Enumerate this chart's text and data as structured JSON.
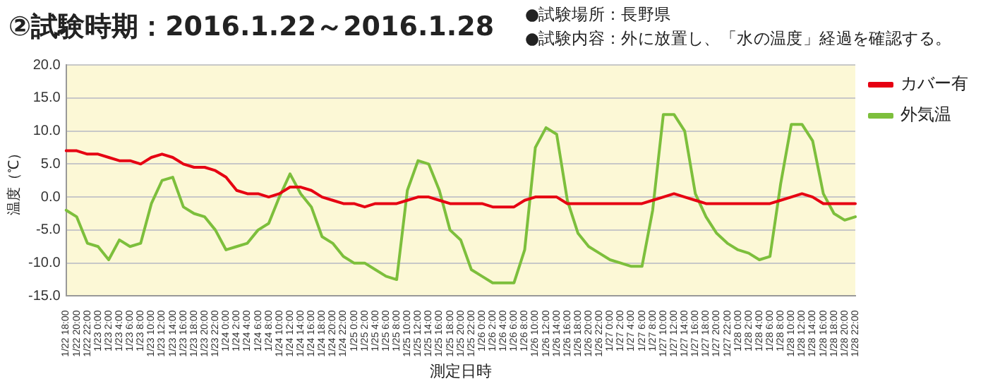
{
  "chart_data": {
    "type": "line",
    "title": "②試験時期：2016.1.22～2016.1.28",
    "annotations": [
      "●試験場所：長野県",
      "●試験内容：外に放置し、「水の温度」経過を確認する。"
    ],
    "xlabel": "測定日時",
    "ylabel": "温度（℃）",
    "categories": [
      "1/22 18:00",
      "1/22 20:00",
      "1/22 22:00",
      "1/23 0:00",
      "1/23 2:00",
      "1/23 4:00",
      "1/23 6:00",
      "1/23 8:00",
      "1/23 10:00",
      "1/23 12:00",
      "1/23 14:00",
      "1/23 16:00",
      "1/23 18:00",
      "1/23 20:00",
      "1/23 22:00",
      "1/24 0:00",
      "1/24 2:00",
      "1/24 4:00",
      "1/24 6:00",
      "1/24 8:00",
      "1/24 10:00",
      "1/24 12:00",
      "1/24 14:00",
      "1/24 16:00",
      "1/24 18:00",
      "1/24 20:00",
      "1/24 22:00",
      "1/25 0:00",
      "1/25 2:00",
      "1/25 4:00",
      "1/25 6:00",
      "1/25 8:00",
      "1/25 10:00",
      "1/25 12:00",
      "1/25 14:00",
      "1/25 16:00",
      "1/25 18:00",
      "1/25 20:00",
      "1/25 22:00",
      "1/26 0:00",
      "1/26 2:00",
      "1/26 4:00",
      "1/26 6:00",
      "1/26 8:00",
      "1/26 10:00",
      "1/26 12:00",
      "1/26 14:00",
      "1/26 16:00",
      "1/26 18:00",
      "1/26 20:00",
      "1/26 22:00",
      "1/27 0:00",
      "1/27 2:00",
      "1/27 4:00",
      "1/27 6:00",
      "1/27 8:00",
      "1/27 10:00",
      "1/27 12:00",
      "1/27 14:00",
      "1/27 16:00",
      "1/27 18:00",
      "1/27 20:00",
      "1/27 22:00",
      "1/28 0:00",
      "1/28 2:00",
      "1/28 4:00",
      "1/28 6:00",
      "1/28 8:00",
      "1/28 10:00",
      "1/28 12:00",
      "1/28 14:00",
      "1/28 16:00",
      "1/28 18:00",
      "1/28 20:00",
      "1/28 22:00"
    ],
    "series": [
      {
        "name": "カバー有",
        "color": "#e60012",
        "values": [
          7,
          7,
          6.5,
          6.5,
          6,
          5.5,
          5.5,
          5,
          6,
          6.5,
          6,
          5,
          4.5,
          4.5,
          4,
          3,
          1,
          0.5,
          0.5,
          0,
          0.5,
          1.5,
          1.5,
          1,
          0,
          -0.5,
          -1,
          -1,
          -1.5,
          -1,
          -1,
          -1,
          -0.5,
          0,
          0,
          -0.5,
          -1,
          -1,
          -1,
          -1,
          -1.5,
          -1.5,
          -1.5,
          -0.5,
          0,
          0,
          0,
          -1,
          -1,
          -1,
          -1,
          -1,
          -1,
          -1,
          -1,
          -0.5,
          0,
          0.5,
          0,
          -0.5,
          -1,
          -1,
          -1,
          -1,
          -1,
          -1,
          -1,
          -0.5,
          0,
          0.5,
          0,
          -1,
          -1,
          -1,
          -1
        ]
      },
      {
        "name": "外気温",
        "color": "#7dbf3c",
        "values": [
          -2,
          -3,
          -7,
          -7.5,
          -9.5,
          -6.5,
          -7.5,
          -7,
          -1,
          2.5,
          3,
          -1.5,
          -2.5,
          -3,
          -5,
          -8,
          -7.5,
          -7,
          -5,
          -4,
          0,
          3.5,
          0.5,
          -1.5,
          -6,
          -7,
          -9,
          -10,
          -10,
          -11,
          -12,
          -12.5,
          1,
          5.5,
          5,
          1,
          -5,
          -6.5,
          -11,
          -12,
          -13,
          -13,
          -13,
          -8,
          7.5,
          10.5,
          9.5,
          -0.5,
          -5.5,
          -7.5,
          -8.5,
          -9.5,
          -10,
          -10.5,
          -10.5,
          -2,
          12.5,
          12.5,
          10,
          0.5,
          -3,
          -5.5,
          -7,
          -8,
          -8.5,
          -9.5,
          -9,
          2,
          11,
          11,
          8.5,
          0.5,
          -2.5,
          -3.5,
          -3
        ]
      }
    ],
    "ylim": [
      -15,
      20
    ],
    "yticks": [
      {
        "value": -15,
        "label": "-15.0"
      },
      {
        "value": -10,
        "label": "-10.0"
      },
      {
        "value": -5,
        "label": "-5.0"
      },
      {
        "value": 0,
        "label": "0.0"
      },
      {
        "value": 5,
        "label": "5.0"
      },
      {
        "value": 10,
        "label": "10.0"
      },
      {
        "value": 15,
        "label": "15.0"
      },
      {
        "value": 20,
        "label": "20.0"
      }
    ],
    "grid": "y",
    "legend": "top right",
    "marker": "none",
    "line_style": "solid"
  }
}
